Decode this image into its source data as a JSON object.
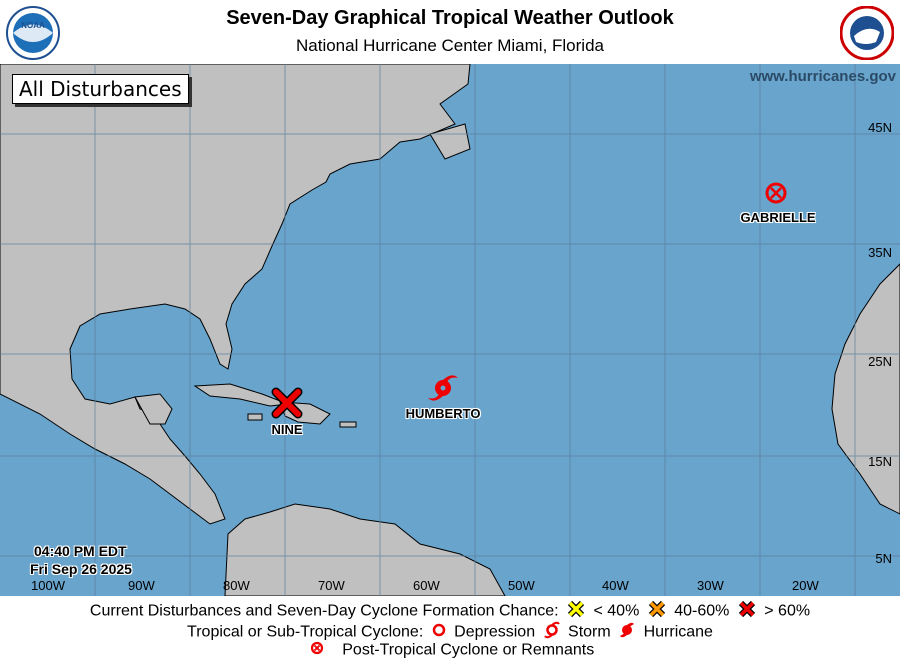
{
  "header": {
    "title": "Seven-Day Graphical Tropical Weather Outlook",
    "subtitle": "National Hurricane Center  Miami, Florida"
  },
  "logos": {
    "left": "NOAA",
    "right": "National Weather Service"
  },
  "map": {
    "panel_label": "All Disturbances",
    "website": "www.hurricanes.gov",
    "colors": {
      "ocean": "#68a4cc",
      "land": "#c0c0c0",
      "grid": "#5a7f99"
    },
    "latitudes": [
      "45N",
      "35N",
      "25N",
      "15N",
      "5N"
    ],
    "longitudes": [
      "100W",
      "90W",
      "80W",
      "70W",
      "60W",
      "50W",
      "40W",
      "30W",
      "20W"
    ],
    "time": "04:40 PM EDT",
    "date": "Fri Sep 26 2025",
    "systems": [
      {
        "name": "GABRIELLE",
        "type": "post-tropical",
        "icon": "circle-x-icon"
      },
      {
        "name": "HUMBERTO",
        "type": "hurricane",
        "icon": "hurricane-icon"
      },
      {
        "name": "NINE",
        "type": "disturbance >60%",
        "icon": "red-x-icon"
      }
    ]
  },
  "legend": {
    "line1_label": "Current Disturbances and Seven-Day Cyclone Formation Chance:",
    "low": "< 40%",
    "medium": "40-60%",
    "high": "> 60%",
    "colors": {
      "low": "#ffff00",
      "medium": "#ff9900",
      "high": "#ee0000"
    },
    "line2_label": "Tropical or Sub-Tropical Cyclone:",
    "depression": "Depression",
    "storm": "Storm",
    "hurricane": "Hurricane",
    "post_tropical": "Post-Tropical Cyclone or Remnants"
  }
}
